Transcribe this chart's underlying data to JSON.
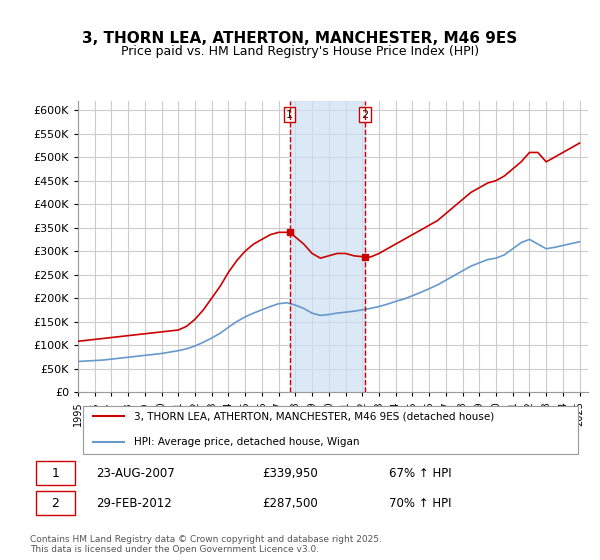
{
  "title": "3, THORN LEA, ATHERTON, MANCHESTER, M46 9ES",
  "subtitle": "Price paid vs. HM Land Registry's House Price Index (HPI)",
  "red_label": "3, THORN LEA, ATHERTON, MANCHESTER, M46 9ES (detached house)",
  "blue_label": "HPI: Average price, detached house, Wigan",
  "transaction1_label": "1",
  "transaction1_date": "23-AUG-2007",
  "transaction1_price": "£339,950",
  "transaction1_hpi": "67% ↑ HPI",
  "transaction2_label": "2",
  "transaction2_date": "29-FEB-2012",
  "transaction2_price": "£287,500",
  "transaction2_hpi": "70% ↑ HPI",
  "vline1_year": 2007.65,
  "vline2_year": 2012.17,
  "shade_color": "#cce0f5",
  "red_color": "#cc0000",
  "blue_color": "#6699cc",
  "grid_color": "#cccccc",
  "background_color": "#ffffff",
  "footer": "Contains HM Land Registry data © Crown copyright and database right 2025.\nThis data is licensed under the Open Government Licence v3.0.",
  "ylim": [
    0,
    620000
  ],
  "yticks": [
    0,
    50000,
    100000,
    150000,
    200000,
    250000,
    300000,
    350000,
    400000,
    450000,
    500000,
    550000,
    600000
  ],
  "ylabel_format": "£{0}K",
  "red_x": [
    1995,
    1995.5,
    1996,
    1996.5,
    1997,
    1997.5,
    1998,
    1998.5,
    1999,
    1999.5,
    2000,
    2000.5,
    2001,
    2001.5,
    2002,
    2002.5,
    2003,
    2003.5,
    2004,
    2004.5,
    2005,
    2005.5,
    2006,
    2006.5,
    2007,
    2007.65,
    2008,
    2008.5,
    2009,
    2009.5,
    2010,
    2010.5,
    2011,
    2011.5,
    2012.17,
    2012.5,
    2013,
    2013.5,
    2014,
    2014.5,
    2015,
    2015.5,
    2016,
    2016.5,
    2017,
    2017.5,
    2018,
    2018.5,
    2019,
    2019.5,
    2020,
    2020.5,
    2021,
    2021.5,
    2022,
    2022.5,
    2023,
    2023.5,
    2024,
    2024.5,
    2025
  ],
  "red_y": [
    108000,
    110000,
    112000,
    114000,
    116000,
    118000,
    120000,
    122000,
    124000,
    126000,
    128000,
    130000,
    132000,
    140000,
    155000,
    175000,
    200000,
    225000,
    255000,
    280000,
    300000,
    315000,
    325000,
    335000,
    339950,
    339950,
    330000,
    315000,
    295000,
    285000,
    290000,
    295000,
    295000,
    290000,
    287500,
    287500,
    295000,
    305000,
    315000,
    325000,
    335000,
    345000,
    355000,
    365000,
    380000,
    395000,
    410000,
    425000,
    435000,
    445000,
    450000,
    460000,
    475000,
    490000,
    510000,
    510000,
    490000,
    500000,
    510000,
    520000,
    530000
  ],
  "blue_x": [
    1995,
    1995.5,
    1996,
    1996.5,
    1997,
    1997.5,
    1998,
    1998.5,
    1999,
    1999.5,
    2000,
    2000.5,
    2001,
    2001.5,
    2002,
    2002.5,
    2003,
    2003.5,
    2004,
    2004.5,
    2005,
    2005.5,
    2006,
    2006.5,
    2007,
    2007.5,
    2008,
    2008.5,
    2009,
    2009.5,
    2010,
    2010.5,
    2011,
    2011.5,
    2012,
    2012.5,
    2013,
    2013.5,
    2014,
    2014.5,
    2015,
    2015.5,
    2016,
    2016.5,
    2017,
    2017.5,
    2018,
    2018.5,
    2019,
    2019.5,
    2020,
    2020.5,
    2021,
    2021.5,
    2022,
    2022.5,
    2023,
    2023.5,
    2024,
    2024.5,
    2025
  ],
  "blue_y": [
    65000,
    66000,
    67000,
    68000,
    70000,
    72000,
    74000,
    76000,
    78000,
    80000,
    82000,
    85000,
    88000,
    92000,
    98000,
    106000,
    115000,
    125000,
    138000,
    150000,
    160000,
    168000,
    175000,
    182000,
    188000,
    190000,
    185000,
    178000,
    168000,
    163000,
    165000,
    168000,
    170000,
    172000,
    175000,
    178000,
    182000,
    187000,
    193000,
    198000,
    205000,
    212000,
    220000,
    228000,
    238000,
    248000,
    258000,
    268000,
    275000,
    282000,
    285000,
    292000,
    305000,
    318000,
    325000,
    315000,
    305000,
    308000,
    312000,
    316000,
    320000
  ]
}
